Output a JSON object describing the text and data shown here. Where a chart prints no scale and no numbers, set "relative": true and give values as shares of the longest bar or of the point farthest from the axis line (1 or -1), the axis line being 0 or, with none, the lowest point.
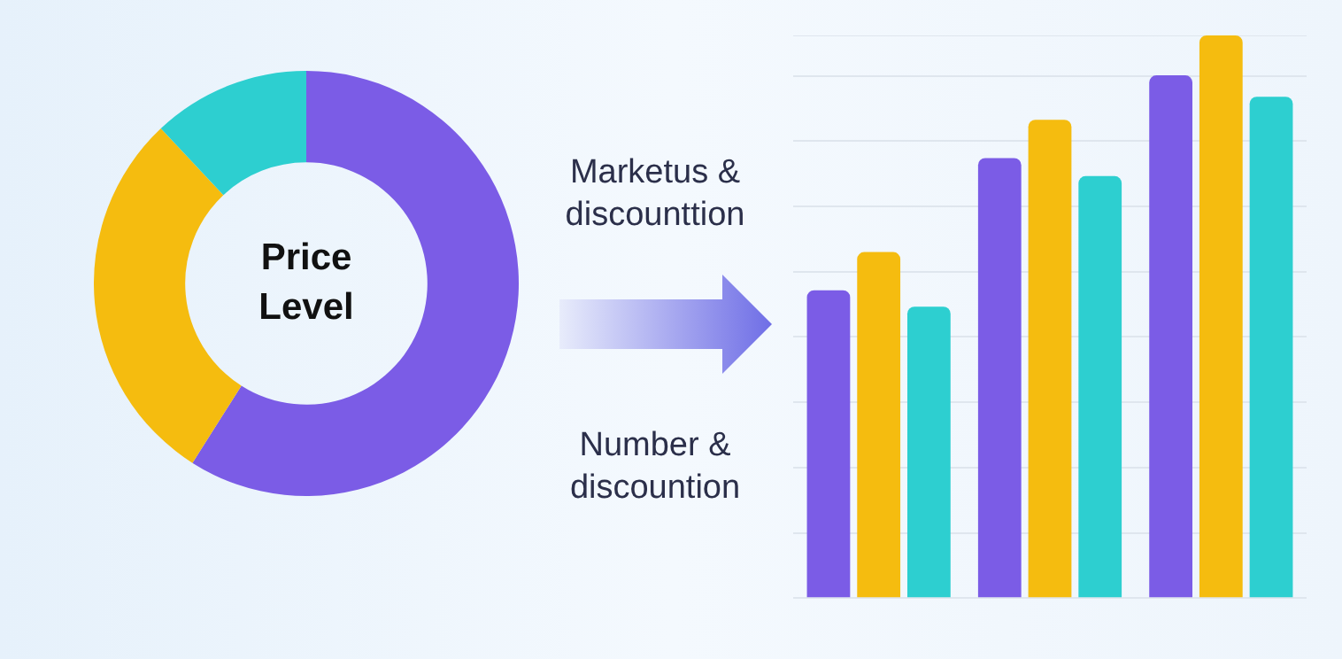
{
  "chart_data": [
    {
      "type": "donut",
      "title": "Price Level",
      "categories": [
        null,
        null,
        null
      ],
      "values": [
        59,
        29,
        12
      ],
      "colors": [
        "#7b5ce6",
        "#f5bc0f",
        "#2dcfd0"
      ],
      "annotations": [
        "Marketus & discounttion",
        "Number & discountion"
      ]
    },
    {
      "type": "bar",
      "relative": true,
      "categories": [
        null,
        null,
        null
      ],
      "grid": "y",
      "series": [
        {
          "color": "#7b5ce6",
          "values": [
            0.547,
            0.782,
            0.929
          ]
        },
        {
          "color": "#f5bc0f",
          "values": [
            0.615,
            0.85,
            1
          ]
        },
        {
          "color": "#2dcfd0",
          "values": [
            0.518,
            0.75,
            0.891
          ]
        }
      ]
    }
  ]
}
